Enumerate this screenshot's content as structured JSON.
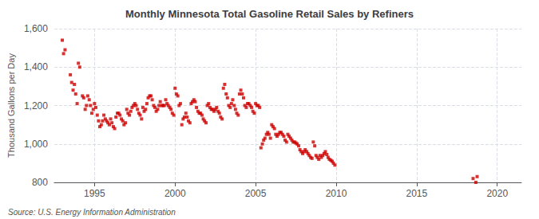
{
  "chart_data": {
    "type": "scatter",
    "title": "Monthly Minnesota Total Gasoline Retail Sales by Refiners",
    "ylabel": "Thousand Gallons per Day",
    "annotations": [
      "Source: U.S. Energy Information Administration"
    ],
    "color": "#cc0000",
    "marker": "square",
    "grid": true,
    "xlim": [
      1992.5,
      2021.5
    ],
    "ylim": [
      800,
      1600
    ],
    "xticks": [
      1995,
      2000,
      2005,
      2010,
      2015,
      2020
    ],
    "yticks": [
      800,
      {
        "value": 1000,
        "label": "1,000"
      },
      {
        "value": 1200,
        "label": "1,200"
      },
      {
        "value": 1400,
        "label": "1,400"
      },
      {
        "value": 1600,
        "label": "1,600"
      }
    ],
    "x": [
      1993.0,
      1993.08,
      1993.17,
      1993.5,
      1993.58,
      1993.67,
      1993.75,
      1993.83,
      1993.92,
      1994.0,
      1994.08,
      1994.25,
      1994.33,
      1994.42,
      1994.5,
      1994.58,
      1994.67,
      1994.75,
      1994.83,
      1994.92,
      1995.0,
      1995.08,
      1995.17,
      1995.25,
      1995.33,
      1995.42,
      1995.5,
      1995.58,
      1995.67,
      1995.75,
      1995.83,
      1995.92,
      1996.0,
      1996.08,
      1996.17,
      1996.25,
      1996.33,
      1996.42,
      1996.5,
      1996.58,
      1996.67,
      1996.75,
      1996.83,
      1996.92,
      1997.0,
      1997.08,
      1997.17,
      1997.25,
      1997.33,
      1997.42,
      1997.5,
      1997.58,
      1997.67,
      1997.75,
      1997.83,
      1997.92,
      1998.0,
      1998.08,
      1998.17,
      1998.25,
      1998.33,
      1998.42,
      1998.5,
      1998.58,
      1998.67,
      1998.75,
      1998.83,
      1998.92,
      1999.0,
      1999.08,
      1999.17,
      1999.25,
      1999.33,
      1999.42,
      1999.5,
      1999.58,
      1999.67,
      1999.75,
      1999.83,
      1999.92,
      2000.0,
      2000.08,
      2000.17,
      2000.25,
      2000.33,
      2000.42,
      2000.5,
      2000.58,
      2000.67,
      2000.75,
      2000.83,
      2000.92,
      2001.0,
      2001.08,
      2001.17,
      2001.25,
      2001.33,
      2001.42,
      2001.5,
      2001.58,
      2001.67,
      2001.75,
      2001.83,
      2001.92,
      2002.0,
      2002.08,
      2002.17,
      2002.25,
      2002.33,
      2002.42,
      2002.5,
      2002.58,
      2002.67,
      2002.75,
      2002.83,
      2002.92,
      2003.0,
      2003.08,
      2003.17,
      2003.25,
      2003.33,
      2003.42,
      2003.5,
      2003.58,
      2003.67,
      2003.75,
      2003.83,
      2003.92,
      2004.0,
      2004.08,
      2004.17,
      2004.25,
      2004.33,
      2004.42,
      2004.5,
      2004.58,
      2004.67,
      2004.75,
      2004.83,
      2004.92,
      2005.0,
      2005.08,
      2005.17,
      2005.25,
      2005.33,
      2005.42,
      2005.5,
      2005.58,
      2005.67,
      2005.75,
      2005.83,
      2005.92,
      2006.0,
      2006.08,
      2006.17,
      2006.25,
      2006.33,
      2006.42,
      2006.5,
      2006.58,
      2006.67,
      2006.75,
      2006.83,
      2006.92,
      2007.0,
      2007.08,
      2007.17,
      2007.25,
      2007.33,
      2007.42,
      2007.5,
      2007.58,
      2007.67,
      2007.75,
      2007.83,
      2007.92,
      2008.0,
      2008.08,
      2008.17,
      2008.25,
      2008.33,
      2008.42,
      2008.5,
      2008.58,
      2008.67,
      2008.75,
      2008.83,
      2008.92,
      2009.0,
      2009.08,
      2009.17,
      2009.25,
      2009.33,
      2009.42,
      2009.5,
      2009.58,
      2009.67,
      2009.75,
      2009.83,
      2009.92,
      2018.5,
      2018.67,
      2018.75
    ],
    "values": [
      1540,
      1470,
      1490,
      1360,
      1320,
      1280,
      1310,
      1260,
      1210,
      1420,
      1400,
      1250,
      1240,
      1180,
      1200,
      1250,
      1230,
      1200,
      1160,
      1180,
      1210,
      1190,
      1150,
      1120,
      1090,
      1100,
      1120,
      1150,
      1130,
      1120,
      1110,
      1100,
      1130,
      1110,
      1090,
      1080,
      1140,
      1160,
      1160,
      1150,
      1130,
      1120,
      1100,
      1110,
      1180,
      1160,
      1150,
      1170,
      1190,
      1200,
      1210,
      1200,
      1180,
      1160,
      1150,
      1130,
      1190,
      1170,
      1180,
      1210,
      1240,
      1250,
      1250,
      1230,
      1200,
      1190,
      1170,
      1180,
      1200,
      1220,
      1200,
      1200,
      1200,
      1230,
      1210,
      1200,
      1190,
      1180,
      1160,
      1150,
      1290,
      1260,
      1250,
      1200,
      1210,
      1100,
      1130,
      1140,
      1160,
      1140,
      1120,
      1110,
      1210,
      1220,
      1230,
      1220,
      1190,
      1170,
      1160,
      1160,
      1150,
      1130,
      1120,
      1110,
      1200,
      1210,
      1190,
      1180,
      1180,
      1170,
      1180,
      1190,
      1170,
      1160,
      1140,
      1130,
      1290,
      1310,
      1260,
      1240,
      1200,
      1190,
      1210,
      1230,
      1200,
      1180,
      1160,
      1150,
      1260,
      1280,
      1260,
      1240,
      1200,
      1190,
      1210,
      1210,
      1200,
      1190,
      1170,
      1160,
      1210,
      1200,
      1200,
      1190,
      980,
      1000,
      1020,
      1030,
      1050,
      1060,
      1050,
      1030,
      1100,
      1090,
      1080,
      1050,
      1040,
      1050,
      1060,
      1060,
      1050,
      1040,
      1020,
      1010,
      1050,
      1040,
      1030,
      1020,
      1010,
      1010,
      1005,
      1000,
      990,
      970,
      960,
      950,
      960,
      970,
      960,
      950,
      940,
      930,
      925,
      1010,
      990,
      940,
      930,
      920,
      940,
      930,
      940,
      950,
      960,
      945,
      930,
      920,
      915,
      910,
      900,
      890,
      820,
      800,
      830
    ]
  }
}
